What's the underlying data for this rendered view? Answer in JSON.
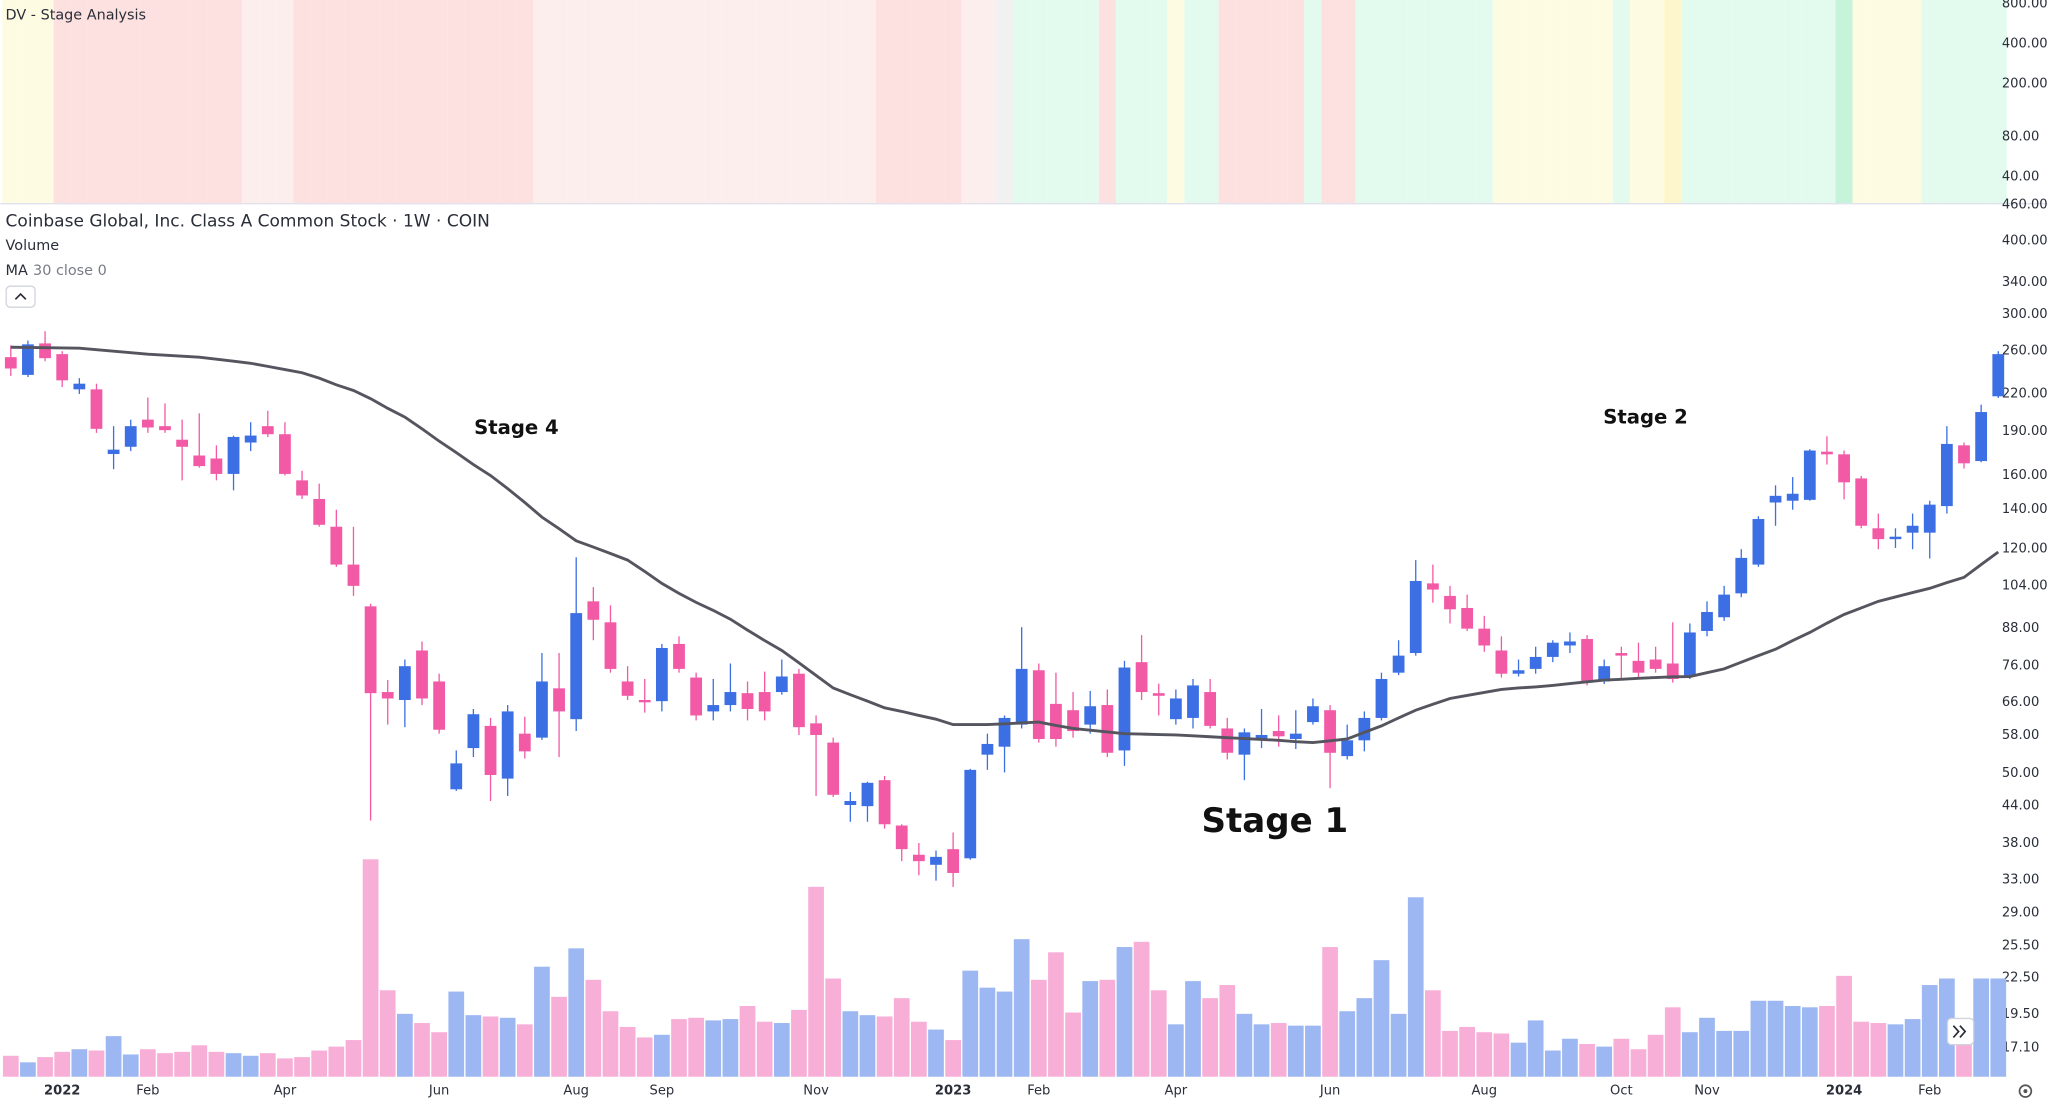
{
  "chart_data": [
    {
      "type": "band",
      "title": "DV - Stage Analysis",
      "log_scale": true,
      "ylim": [
        25.4,
        856
      ],
      "yticks": [
        {
          "value": 40,
          "label": "40.00"
        },
        {
          "value": 80,
          "label": "80.00"
        },
        {
          "value": 200,
          "label": "200.00"
        },
        {
          "value": 400,
          "label": "400.00"
        },
        {
          "value": 800,
          "label": "800.00"
        }
      ],
      "band_colors": [
        "#fefbe3",
        "#fefbe3",
        "#fefbe3",
        "#fde1e0",
        "#fde1e0",
        "#fde1e0",
        "#fde1e0",
        "#fde1e0",
        "#fde1e0",
        "#fde1e0",
        "#fde1e0",
        "#fde1e0",
        "#fde1e0",
        "#fde1e0",
        "#fdeeee",
        "#fdeeee",
        "#fdeeee",
        "#fde1e0",
        "#fde1e0",
        "#fde1e0",
        "#fde1e0",
        "#fde1e0",
        "#fde1e0",
        "#fde1e0",
        "#fde1e0",
        "#fde1e0",
        "#fde1e0",
        "#fde1e0",
        "#fde1e0",
        "#fde1e0",
        "#fde1e0",
        "#fdeeee",
        "#fdeeee",
        "#fdeeee",
        "#fdeeee",
        "#fdeeee",
        "#fdeeee",
        "#fdeeee",
        "#fdeeee",
        "#fdeeee",
        "#fdeeee",
        "#fdeeee",
        "#fdeeee",
        "#fdeeee",
        "#fdeeee",
        "#fdeeee",
        "#fdeeee",
        "#fdeeee",
        "#fdeeee",
        "#fdeeee",
        "#fdeeee",
        "#fde1e0",
        "#fde1e0",
        "#fde1e0",
        "#fde1e0",
        "#fde1e0",
        "#fdeeee",
        "#fdeeee",
        "#f1f1f1",
        "#e3fbef",
        "#e3fbef",
        "#e3fbef",
        "#e3fbef",
        "#e3fbef",
        "#fde1e0",
        "#e3fbef",
        "#e3fbef",
        "#e3fbef",
        "#fefbe3",
        "#e3fbef",
        "#e3fbef",
        "#fde1e0",
        "#fde1e0",
        "#fde1e0",
        "#fde1e0",
        "#fde1e0",
        "#e3fbef",
        "#fde1e0",
        "#fde1e0",
        "#e3fbef",
        "#e3fbef",
        "#e3fbef",
        "#e3fbef",
        "#e3fbef",
        "#e3fbef",
        "#e3fbef",
        "#e3fbef",
        "#fefbe3",
        "#fefbe3",
        "#fefbe3",
        "#fefbe3",
        "#fefbe3",
        "#fefbe3",
        "#fefbe3",
        "#e3fbef",
        "#fefbe3",
        "#fefbe3",
        "#fdf6cc",
        "#e3fbef",
        "#e3fbef",
        "#e3fbef",
        "#e3fbef",
        "#e3fbef",
        "#e3fbef",
        "#e3fbef",
        "#e3fbef",
        "#e3fbef",
        "#c6f4da",
        "#fefbe3",
        "#fefbe3",
        "#fefbe3",
        "#fefbe3",
        "#e3fbef",
        "#e3fbef",
        "#e3fbef",
        "#e3fbef",
        "#e3fbef"
      ]
    },
    {
      "type": "candlestick",
      "title": "Coinbase Global, Inc. Class A Common Stock · 1W · COIN",
      "log_scale": true,
      "grid": false,
      "ylim": [
        15.3,
        463.6
      ],
      "yticks": [
        {
          "value": 460,
          "label": "460.00"
        },
        {
          "value": 400,
          "label": "400.00"
        },
        {
          "value": 340,
          "label": "340.00"
        },
        {
          "value": 300,
          "label": "300.00"
        },
        {
          "value": 260,
          "label": "260.00"
        },
        {
          "value": 220,
          "label": "220.00"
        },
        {
          "value": 190,
          "label": "190.00"
        },
        {
          "value": 160,
          "label": "160.00"
        },
        {
          "value": 140,
          "label": "140.00"
        },
        {
          "value": 120,
          "label": "120.00"
        },
        {
          "value": 104,
          "label": "104.00"
        },
        {
          "value": 88,
          "label": "88.00"
        },
        {
          "value": 76,
          "label": "76.00"
        },
        {
          "value": 66,
          "label": "66.00"
        },
        {
          "value": 58,
          "label": "58.00"
        },
        {
          "value": 50,
          "label": "50.00"
        },
        {
          "value": 44,
          "label": "44.00"
        },
        {
          "value": 38,
          "label": "38.00"
        },
        {
          "value": 33,
          "label": "33.00"
        },
        {
          "value": 29,
          "label": "29.00"
        },
        {
          "value": 25.5,
          "label": "25.50"
        },
        {
          "value": 22.5,
          "label": "22.50"
        },
        {
          "value": 19.5,
          "label": "19.50"
        },
        {
          "value": 17.1,
          "label": "17.10"
        }
      ],
      "up_color": "#3c6fe3",
      "down_color": "#f25aa6",
      "categories": [
        null,
        null,
        null,
        "2022",
        null,
        null,
        null,
        null,
        "Feb",
        null,
        null,
        null,
        null,
        null,
        null,
        null,
        "Apr",
        null,
        null,
        null,
        null,
        null,
        null,
        null,
        null,
        "Jun",
        null,
        null,
        null,
        null,
        null,
        null,
        null,
        "Aug",
        null,
        null,
        null,
        null,
        "Sep",
        null,
        null,
        null,
        null,
        null,
        null,
        null,
        null,
        "Nov",
        null,
        null,
        null,
        null,
        null,
        null,
        null,
        "2023",
        null,
        null,
        null,
        null,
        "Feb",
        null,
        null,
        null,
        null,
        null,
        null,
        null,
        "Apr",
        null,
        null,
        null,
        null,
        null,
        null,
        null,
        null,
        "Jun",
        null,
        null,
        null,
        null,
        null,
        null,
        null,
        null,
        "Aug",
        null,
        null,
        null,
        null,
        null,
        null,
        null,
        "Oct",
        null,
        null,
        null,
        null,
        "Nov",
        null,
        null,
        null,
        null,
        null,
        null,
        null,
        "2024",
        null,
        null,
        null,
        null,
        "Feb",
        null,
        null,
        null,
        null
      ],
      "open": [
        254,
        237,
        268,
        257,
        224,
        224,
        174,
        179,
        199,
        194,
        184,
        173,
        171,
        161,
        182,
        194,
        188,
        157,
        146,
        131,
        113,
        96,
        68.7,
        66.6,
        80.8,
        71.6,
        47,
        55.2,
        60.2,
        49,
        58.4,
        57.5,
        69.7,
        61.8,
        97.9,
        90.2,
        71.6,
        66.6,
        66.3,
        82.9,
        72.7,
        63.7,
        65.3,
        68.4,
        68.7,
        68.7,
        73.8,
        60.8,
        56.4,
        44.2,
        44,
        48.7,
        40.8,
        36.4,
        35,
        37.2,
        35.9,
        53.8,
        55.5,
        60.5,
        74.8,
        65.6,
        64,
        60.5,
        65.3,
        54.7,
        77.2,
        68.4,
        61.8,
        62.1,
        68.7,
        59.6,
        53.8,
        56.9,
        59,
        57.2,
        61.1,
        64,
        53.5,
        56.9,
        62.1,
        74.1,
        80,
        105,
        100,
        95.4,
        88,
        80.8,
        73.8,
        75.2,
        78.8,
        82.4,
        84.5,
        71.6,
        80,
        77.6,
        78,
        76.8,
        73,
        87.2,
        92,
        101,
        113,
        144,
        145,
        145.5,
        175.6,
        173.8,
        158.2,
        130.2,
        124.8,
        128,
        128,
        142,
        180,
        169.3,
        218
      ],
      "high": [
        266,
        271,
        281,
        260,
        234,
        229,
        194,
        199,
        217,
        212,
        199,
        204,
        180,
        187,
        197,
        206,
        197,
        163,
        155,
        140,
        131,
        97,
        72,
        78,
        83.7,
        73.8,
        54.7,
        64.3,
        62.1,
        65.3,
        62.4,
        80,
        80,
        116.3,
        103.5,
        96.4,
        76,
        72.3,
        82.9,
        85.4,
        74.1,
        72.3,
        76.8,
        71.6,
        74.4,
        78,
        75.2,
        62.7,
        57.5,
        46.5,
        48.4,
        49.5,
        41,
        38.1,
        37,
        39.7,
        50.9,
        58.4,
        62.7,
        88.5,
        76.8,
        74.1,
        68.7,
        69,
        69.4,
        77.6,
        85.8,
        71,
        69.4,
        72.3,
        72.3,
        62.1,
        59.6,
        64.3,
        62.7,
        64,
        67,
        65.3,
        60.5,
        63.7,
        74.1,
        84.1,
        115,
        113,
        104,
        100.5,
        92.5,
        85.4,
        78,
        82,
        84.1,
        86.7,
        85.8,
        78,
        82,
        83.3,
        82,
        90.2,
        89.8,
        97.9,
        104,
        120,
        136.5,
        154,
        159,
        177.3,
        186.5,
        176.4,
        159.7,
        137.9,
        130.2,
        137.9,
        145,
        194,
        182,
        211,
        260
      ],
      "low": [
        236,
        235,
        250,
        226,
        220,
        189,
        164,
        176,
        189,
        189,
        157,
        165,
        157,
        151,
        176,
        186,
        160,
        146,
        131,
        112,
        100,
        41.6,
        60.5,
        59.9,
        65.3,
        58.4,
        46.7,
        53.3,
        44.9,
        45.8,
        53,
        57,
        53.3,
        59,
        84.1,
        74.1,
        66.6,
        63.4,
        63.7,
        74.1,
        61.5,
        61.5,
        63.7,
        61.5,
        61.5,
        68,
        58.1,
        45.8,
        45.6,
        41.4,
        41.4,
        40.3,
        35.5,
        33.6,
        32.9,
        32.1,
        35.7,
        50.7,
        50.2,
        59.6,
        56.4,
        55.5,
        57.5,
        58.4,
        53.3,
        51.5,
        66.6,
        62.7,
        60.5,
        59.6,
        59.6,
        52.8,
        48.7,
        55.2,
        55.5,
        55,
        60.5,
        47.2,
        52.8,
        54.5,
        61.5,
        73.4,
        79.2,
        97.4,
        89.8,
        87.2,
        80.4,
        72.7,
        73,
        73.8,
        77.2,
        80,
        70.5,
        70.9,
        72.3,
        72.3,
        74.1,
        71.3,
        72.3,
        85.4,
        90.7,
        99.5,
        112,
        131.5,
        140,
        145,
        167,
        145.8,
        130.2,
        120,
        120.6,
        120,
        115.7,
        137.9,
        164.4,
        168.5,
        216.6
      ],
      "close": [
        243,
        267,
        253,
        232,
        229,
        192,
        177,
        194,
        193,
        191,
        179,
        166,
        161,
        186,
        187,
        188,
        161,
        148,
        132,
        113,
        104,
        68.4,
        67,
        76,
        67,
        59.3,
        52,
        63,
        49.7,
        63.7,
        54.5,
        71.6,
        63.7,
        93.5,
        91.1,
        75.2,
        67.7,
        66,
        81.6,
        75.2,
        62.7,
        65.3,
        68.7,
        64.3,
        63.7,
        73,
        59.9,
        58.1,
        46,
        44.9,
        48.2,
        41,
        37.2,
        35.5,
        36.1,
        33.9,
        50.7,
        56.1,
        62.1,
        75.2,
        57.2,
        57.2,
        59,
        65,
        54.2,
        75.6,
        68.7,
        67.7,
        67,
        70.5,
        60.2,
        54.2,
        58.7,
        58.1,
        57.8,
        58.4,
        65,
        54.2,
        56.9,
        62.1,
        72.3,
        79.2,
        106,
        102.5,
        94.9,
        88,
        82.4,
        73.8,
        74.8,
        78.8,
        83.3,
        83.7,
        71.6,
        76,
        79.2,
        74.1,
        75.2,
        72.3,
        86.7,
        93.9,
        100.5,
        116,
        135,
        147.8,
        149,
        176.4,
        173.8,
        155.8,
        131.5,
        124.8,
        126,
        131.5,
        142.8,
        181,
        167.8,
        205,
        257
      ],
      "volume": {
        "name": "Volume",
        "up_color": "#9cb7f1",
        "down_color": "#f8afd7",
        "values": [
          16,
          11,
          15,
          19,
          21,
          20,
          31,
          17,
          21,
          18,
          19,
          24,
          19,
          18,
          16,
          18,
          14,
          15,
          20,
          23,
          28,
          166,
          66,
          48,
          41,
          34,
          65,
          47,
          46,
          45,
          40,
          84,
          61,
          98,
          74,
          50,
          38,
          30,
          32,
          44,
          45,
          43,
          44,
          54,
          42,
          41,
          51,
          145,
          75,
          50,
          47,
          46,
          60,
          42,
          36,
          28,
          81,
          68,
          65,
          105,
          74,
          95,
          49,
          73,
          74,
          99,
          103,
          66,
          40,
          73,
          60,
          70,
          48,
          40,
          41,
          39,
          39,
          99,
          50,
          60,
          89,
          48,
          137,
          66,
          35,
          38,
          34,
          33,
          26,
          43,
          20,
          29,
          25,
          23,
          29,
          21,
          32,
          53,
          34,
          45,
          35,
          35,
          58,
          58,
          54,
          53,
          54,
          77,
          42,
          41,
          40,
          44,
          70,
          75,
          42,
          75,
          75
        ]
      },
      "ma": {
        "name": "MA",
        "params": "30 close 0",
        "color": "#55555f",
        "values": [
          264,
          263.8,
          263.5,
          263.3,
          263,
          261.5,
          260,
          258.5,
          257,
          256,
          255,
          254,
          252,
          250,
          248,
          245,
          242,
          239,
          234,
          228,
          223,
          216,
          208,
          201,
          192,
          183,
          175,
          167,
          160,
          152,
          144,
          136,
          130,
          124,
          121,
          118,
          115,
          110,
          105,
          101,
          97.5,
          94.5,
          91.3,
          87.5,
          84,
          80.8,
          77,
          73.3,
          69.8,
          68,
          66.3,
          64.6,
          63.7,
          62.7,
          61.8,
          60.5,
          60.5,
          60.5,
          60.7,
          60.9,
          61.1,
          60.3,
          59.6,
          59.2,
          58.8,
          58.4,
          58.3,
          58.2,
          58.1,
          57.9,
          57.7,
          57.5,
          57.3,
          57.1,
          56.9,
          56.6,
          56.4,
          56.8,
          57.2,
          58.7,
          60.2,
          62.1,
          64,
          65.5,
          67,
          67.8,
          68.6,
          69.4,
          69.8,
          70.1,
          70.5,
          71,
          71.5,
          72,
          72.2,
          72.5,
          72.7,
          72.9,
          73,
          74.1,
          75.2,
          77.2,
          79.2,
          81.2,
          84,
          86.7,
          89.9,
          93,
          95.4,
          97.9,
          99.6,
          101.3,
          103,
          105.3,
          107.5,
          113,
          118.7
        ]
      },
      "annotations": [
        "Stage 4",
        "Stage 1",
        "Stage 2"
      ]
    }
  ]
}
